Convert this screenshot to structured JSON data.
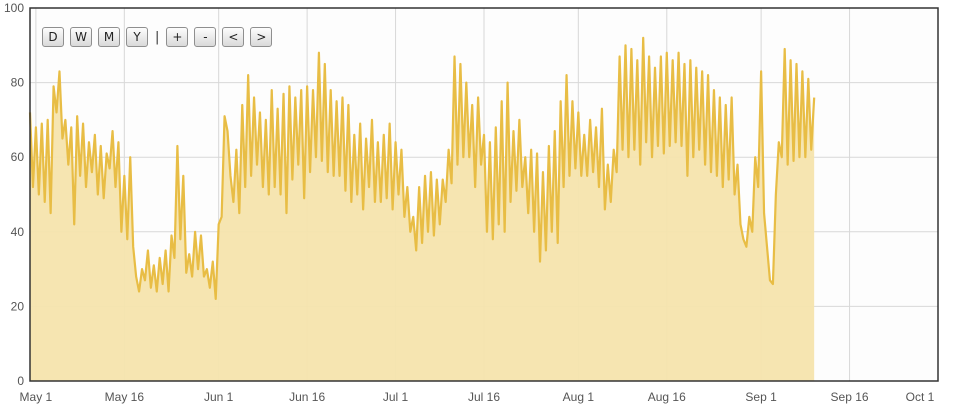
{
  "toolbar": {
    "buttons": [
      {
        "name": "day-button",
        "label": "D"
      },
      {
        "name": "week-button",
        "label": "W"
      },
      {
        "name": "month-button",
        "label": "M"
      },
      {
        "name": "year-button",
        "label": "Y"
      },
      {
        "name": "zoom-in-button",
        "label": "+"
      },
      {
        "name": "zoom-out-button",
        "label": "-"
      },
      {
        "name": "previous-button",
        "label": "<"
      },
      {
        "name": "next-button",
        "label": ">"
      }
    ],
    "separator": "|"
  },
  "colors": {
    "line": "#e8bd45",
    "fill": "#f6e4ad",
    "grid": "#d8d8d8",
    "plot_border": "#333333",
    "plot_background": "#fdfdfd"
  },
  "chart_data": {
    "type": "area",
    "title": "",
    "xlabel": "",
    "ylabel": "",
    "ylim": [
      0,
      100
    ],
    "xlim": [
      "2015-04-30",
      "2015-10-01"
    ],
    "y_ticks": [
      0,
      20,
      40,
      60,
      80,
      100
    ],
    "x_ticks": [
      {
        "date": "2015-05-01",
        "label": "May 1"
      },
      {
        "date": "2015-05-16",
        "label": "May 16"
      },
      {
        "date": "2015-06-01",
        "label": "Jun 1"
      },
      {
        "date": "2015-06-16",
        "label": "Jun 16"
      },
      {
        "date": "2015-07-01",
        "label": "Jul 1"
      },
      {
        "date": "2015-07-16",
        "label": "Jul 16"
      },
      {
        "date": "2015-08-01",
        "label": "Aug 1"
      },
      {
        "date": "2015-08-16",
        "label": "Aug 16"
      },
      {
        "date": "2015-09-01",
        "label": "Sep 1"
      },
      {
        "date": "2015-09-16",
        "label": "Sep 16"
      },
      {
        "date": "2015-10-01",
        "label": "Oct 1"
      }
    ],
    "grid": true,
    "legend": "none",
    "series": [
      {
        "x_start": "2015-04-30",
        "x_step_days": 0.5,
        "values": [
          72,
          52,
          68,
          50,
          69,
          48,
          70,
          45,
          79,
          72,
          83,
          65,
          70,
          58,
          68,
          42,
          71,
          55,
          69,
          52,
          64,
          56,
          66,
          50,
          63,
          49,
          61,
          57,
          67,
          52,
          64,
          40,
          55,
          38,
          60,
          36,
          28,
          24,
          30,
          27,
          35,
          25,
          31,
          24,
          33,
          26,
          35,
          24,
          39,
          33,
          63,
          38,
          55,
          29,
          34,
          28,
          40,
          30,
          39,
          28,
          30,
          25,
          32,
          22,
          42,
          44,
          71,
          67,
          55,
          48,
          62,
          45,
          74,
          52,
          82,
          55,
          76,
          58,
          72,
          52,
          70,
          50,
          78,
          52,
          73,
          50,
          77,
          45,
          79,
          54,
          76,
          58,
          78,
          49,
          79,
          56,
          78,
          60,
          88,
          59,
          85,
          56,
          78,
          55,
          75,
          55,
          76,
          51,
          74,
          48,
          66,
          50,
          69,
          46,
          65,
          52,
          70,
          48,
          64,
          48,
          66,
          49,
          69,
          46,
          64,
          50,
          62,
          44,
          52,
          40,
          44,
          35,
          52,
          37,
          55,
          40,
          56,
          39,
          54,
          42,
          54,
          48,
          62,
          53,
          87,
          58,
          85,
          60,
          80,
          60,
          74,
          52,
          76,
          58,
          66,
          40,
          64,
          38,
          68,
          42,
          75,
          40,
          80,
          48,
          67,
          51,
          70,
          52,
          60,
          45,
          62,
          40,
          61,
          32,
          56,
          35,
          63,
          40,
          67,
          37,
          75,
          52,
          82,
          55,
          75,
          57,
          72,
          55,
          66,
          55,
          70,
          56,
          68,
          52,
          73,
          46,
          58,
          48,
          62,
          56,
          87,
          62,
          90,
          60,
          89,
          62,
          86,
          58,
          92,
          64,
          87,
          60,
          84,
          63,
          87,
          61,
          88,
          63,
          86,
          64,
          88,
          63,
          85,
          55,
          86,
          60,
          84,
          62,
          83,
          58,
          82,
          56,
          78,
          55,
          76,
          52,
          74,
          54,
          76,
          50,
          58,
          42,
          38,
          36,
          44,
          40,
          60,
          52,
          83,
          45,
          36,
          27,
          26,
          50,
          64,
          60,
          89,
          58,
          86,
          59,
          85,
          60,
          83,
          60,
          81,
          62,
          76
        ]
      }
    ]
  }
}
